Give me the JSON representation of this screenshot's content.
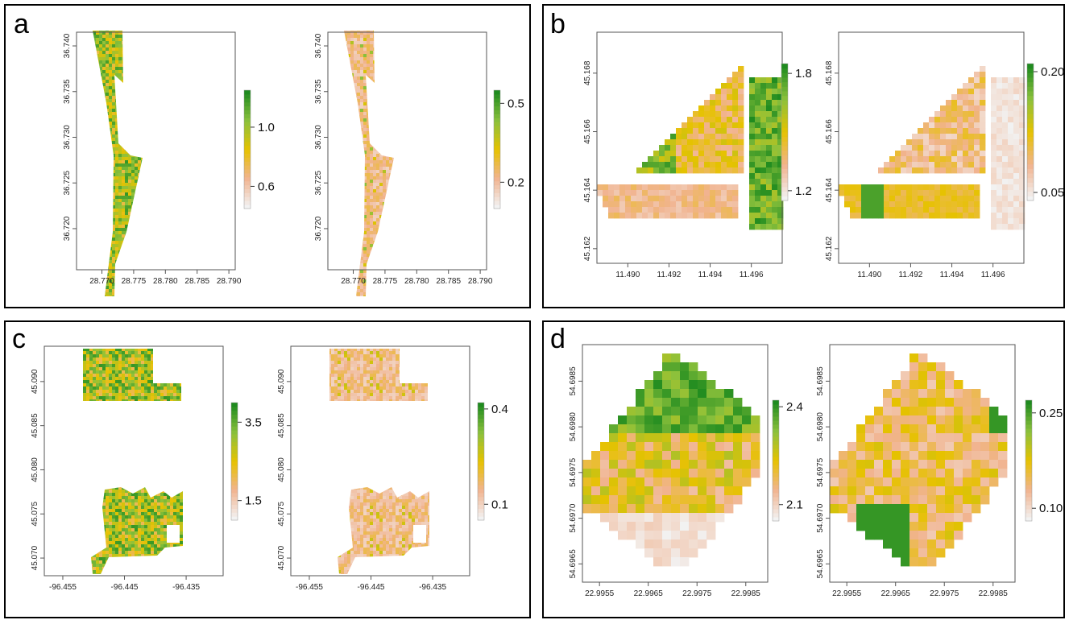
{
  "panels": [
    {
      "label": "a"
    },
    {
      "label": "b"
    },
    {
      "label": "c"
    },
    {
      "label": "d"
    }
  ],
  "colors": {
    "low": "#f2f2f2",
    "mid_low": "#f1b38f",
    "mid": "#e6c200",
    "mid_high": "#8cc13c",
    "high": "#1f8b1f"
  },
  "chart_data": [
    {
      "type": "heatmap",
      "panel": "a",
      "xlim": [
        28.766,
        28.791
      ],
      "ylim": [
        36.7155,
        36.7415
      ],
      "x_ticks": [
        "28.770",
        "28.775",
        "28.780",
        "28.785",
        "28.790"
      ],
      "y_ticks": [
        "36.720",
        "36.725",
        "36.730",
        "36.735",
        "36.740"
      ],
      "legend_ticks": [
        "1.0",
        "0.6"
      ],
      "legend_range": [
        0.45,
        1.25
      ]
    },
    {
      "type": "heatmap",
      "panel": "a",
      "xlim": [
        28.766,
        28.791
      ],
      "ylim": [
        36.7155,
        36.7415
      ],
      "x_ticks": [
        "28.770",
        "28.775",
        "28.780",
        "28.785",
        "28.790"
      ],
      "y_ticks": [
        "36.720",
        "36.725",
        "36.730",
        "36.735",
        "36.740"
      ],
      "legend_ticks": [
        "0.5",
        "0.2"
      ],
      "legend_range": [
        0.1,
        0.55
      ]
    },
    {
      "type": "heatmap",
      "panel": "b",
      "xlim": [
        11.4885,
        11.4975
      ],
      "ylim": [
        45.1615,
        45.1694
      ],
      "x_ticks": [
        "11.490",
        "11.492",
        "11.494",
        "11.496"
      ],
      "y_ticks": [
        "45.162",
        "45.164",
        "45.166",
        "45.168"
      ],
      "legend_ticks": [
        "1.8",
        "1.2"
      ],
      "legend_range": [
        1.15,
        1.85
      ]
    },
    {
      "type": "heatmap",
      "panel": "b",
      "xlim": [
        11.4885,
        11.4975
      ],
      "ylim": [
        45.1615,
        45.1694
      ],
      "x_ticks": [
        "11.490",
        "11.492",
        "11.494",
        "11.496"
      ],
      "y_ticks": [
        "45.162",
        "45.164",
        "45.166",
        "45.168"
      ],
      "legend_ticks": [
        "0.20",
        "0.05"
      ],
      "legend_range": [
        0.04,
        0.21
      ]
    },
    {
      "type": "heatmap",
      "panel": "c",
      "xlim": [
        -96.458,
        -96.429
      ],
      "ylim": [
        45.068,
        45.094
      ],
      "x_ticks": [
        "-96.455",
        "-96.445",
        "-96.435"
      ],
      "y_ticks": [
        "45.070",
        "45.075",
        "45.080",
        "45.085",
        "45.090"
      ],
      "legend_ticks": [
        "3.5",
        "1.5"
      ],
      "legend_range": [
        1.0,
        4.0
      ]
    },
    {
      "type": "heatmap",
      "panel": "c",
      "xlim": [
        -96.458,
        -96.429
      ],
      "ylim": [
        45.068,
        45.094
      ],
      "x_ticks": [
        "-96.455",
        "-96.445",
        "-96.435"
      ],
      "y_ticks": [
        "45.070",
        "45.075",
        "45.080",
        "45.085",
        "45.090"
      ],
      "legend_ticks": [
        "0.4",
        "0.1"
      ],
      "legend_range": [
        0.05,
        0.42
      ]
    },
    {
      "type": "heatmap",
      "panel": "d",
      "xlim": [
        22.99515,
        22.99895
      ],
      "ylim": [
        54.6963,
        54.6989
      ],
      "x_ticks": [
        "22.9955",
        "22.9965",
        "22.9975",
        "22.9985"
      ],
      "y_ticks": [
        "54.6965",
        "54.6970",
        "54.6975",
        "54.6980",
        "54.6985"
      ],
      "legend_ticks": [
        "2.4",
        "2.1"
      ],
      "legend_range": [
        2.05,
        2.42
      ]
    },
    {
      "type": "heatmap",
      "panel": "d",
      "xlim": [
        22.99515,
        22.99895
      ],
      "ylim": [
        54.6963,
        54.6989
      ],
      "x_ticks": [
        "22.9955",
        "22.9965",
        "22.9975",
        "22.9985"
      ],
      "y_ticks": [
        "54.6965",
        "54.6970",
        "54.6975",
        "54.6980",
        "54.6985"
      ],
      "legend_ticks": [
        "0.25",
        "0.10"
      ],
      "legend_range": [
        0.08,
        0.27
      ]
    }
  ]
}
